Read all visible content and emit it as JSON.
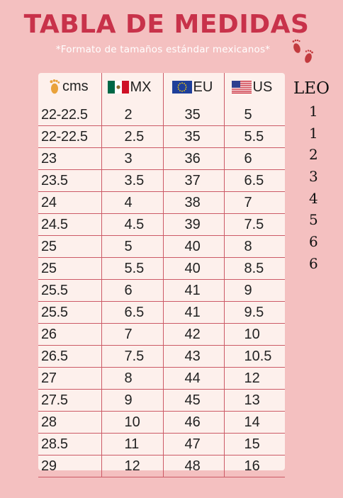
{
  "title": "TABLA DE MEDIDAS",
  "subtitle": "*Formato de tamaños estándar mexicanos*",
  "icons": {
    "header_cms": "footprint-icon",
    "header_mx": "mexico-flag-icon",
    "header_eu": "eu-flag-icon",
    "header_us": "us-flag-icon",
    "decor": "baby-footprints-icon"
  },
  "colors": {
    "background": "#f4c0c0",
    "title": "#c8324a",
    "table_bg": "#fdf0ec",
    "lines": "#cc5a66"
  },
  "table": {
    "headers": [
      "cms",
      "MX",
      "EU",
      "US"
    ],
    "rows": [
      [
        "22-22.5",
        "2",
        "35",
        "5"
      ],
      [
        "22-22.5",
        "2.5",
        "35",
        "5.5"
      ],
      [
        "23",
        "3",
        "36",
        "6"
      ],
      [
        "23.5",
        "3.5",
        "37",
        "6.5"
      ],
      [
        "24",
        "4",
        "38",
        "7"
      ],
      [
        "24.5",
        "4.5",
        "39",
        "7.5"
      ],
      [
        "25",
        "5",
        "40",
        "8"
      ],
      [
        "25",
        "5.5",
        "40",
        "8.5"
      ],
      [
        "25.5",
        "6",
        "41",
        "9"
      ],
      [
        "25.5",
        "6.5",
        "41",
        "9.5"
      ],
      [
        "26",
        "7",
        "42",
        "10"
      ],
      [
        "26.5",
        "7.5",
        "43",
        "10.5"
      ],
      [
        "27",
        "8",
        "44",
        "12"
      ],
      [
        "27.5",
        "9",
        "45",
        "13"
      ],
      [
        "28",
        "10",
        "46",
        "14"
      ],
      [
        "28.5",
        "11",
        "47",
        "15"
      ],
      [
        "29",
        "12",
        "48",
        "16"
      ]
    ]
  },
  "leo": {
    "heading": "LEO",
    "values": [
      "1",
      "1",
      "2",
      "3",
      "4",
      "5",
      "6",
      "6"
    ]
  }
}
